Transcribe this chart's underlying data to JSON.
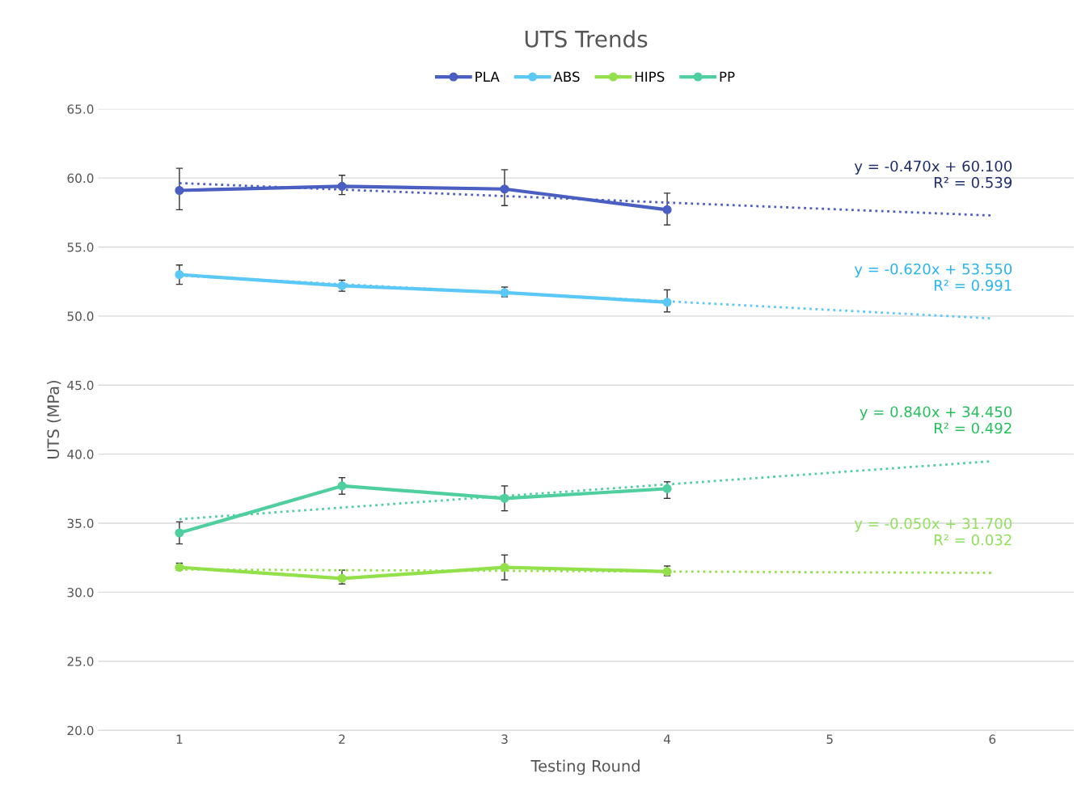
{
  "chart_data": {
    "type": "line",
    "title": "UTS Trends",
    "xlabel": "Testing Round",
    "ylabel": "UTS (MPa)",
    "xlim": [
      0.5,
      6.5
    ],
    "xticks": [
      1,
      2,
      3,
      4,
      5,
      6
    ],
    "ylim": [
      20,
      65
    ],
    "yticks": [
      {
        "value": 20,
        "label": "20.0"
      },
      {
        "value": 25,
        "label": "25.0"
      },
      {
        "value": 30,
        "label": "30.0"
      },
      {
        "value": 35,
        "label": "35.0"
      },
      {
        "value": 40,
        "label": "40.0"
      },
      {
        "value": 45,
        "label": "45.0"
      },
      {
        "value": 50,
        "label": "50.0"
      },
      {
        "value": 55,
        "label": "55.0"
      },
      {
        "value": 60,
        "label": "60.0"
      },
      {
        "value": 65,
        "label": "65.0"
      }
    ],
    "grid": "y",
    "legend": "top",
    "marker": "circle",
    "series": [
      {
        "name": "PLA",
        "color": "#4a5fc1",
        "x": [
          1,
          2,
          3,
          4
        ],
        "values": [
          59.1,
          59.4,
          59.2,
          57.7
        ],
        "errors": [
          [
            57.7,
            60.7
          ],
          [
            58.8,
            60.2
          ],
          [
            58.0,
            60.6
          ],
          [
            56.6,
            58.9
          ]
        ]
      },
      {
        "name": "ABS",
        "color": "#5bc8f5",
        "x": [
          1,
          2,
          3,
          4
        ],
        "values": [
          53.0,
          52.2,
          51.7,
          51.0
        ],
        "errors": [
          [
            52.3,
            53.7
          ],
          [
            51.8,
            52.6
          ],
          [
            51.4,
            52.1
          ],
          [
            50.3,
            51.9
          ]
        ]
      },
      {
        "name": "HIPS",
        "color": "#92e04a",
        "x": [
          1,
          2,
          3,
          4
        ],
        "values": [
          31.8,
          31.0,
          31.8,
          31.5
        ],
        "errors": [
          [
            31.6,
            32.1
          ],
          [
            30.6,
            31.6
          ],
          [
            30.9,
            32.7
          ],
          [
            31.2,
            31.9
          ]
        ]
      },
      {
        "name": "PP",
        "color": "#4fcfa0",
        "x": [
          1,
          2,
          3,
          4
        ],
        "values": [
          34.3,
          37.7,
          36.8,
          37.5
        ],
        "errors": [
          [
            33.5,
            35.1
          ],
          [
            37.1,
            38.3
          ],
          [
            35.9,
            37.7
          ],
          [
            36.8,
            38.0
          ]
        ]
      },
      {
        "color": "#4a5fc1",
        "x": [
          1,
          6
        ],
        "values": [
          59.63,
          57.28
        ],
        "line_style": "dotted",
        "marker": "none"
      },
      {
        "color": "#5bc8f5",
        "x": [
          1,
          6
        ],
        "values": [
          52.93,
          49.83
        ],
        "line_style": "dotted",
        "marker": "none"
      },
      {
        "color": "#92e04a",
        "x": [
          1,
          6
        ],
        "values": [
          31.65,
          31.4
        ],
        "line_style": "dotted",
        "marker": "none"
      },
      {
        "color": "#4fcfa0",
        "x": [
          1,
          6
        ],
        "values": [
          35.29,
          39.49
        ],
        "line_style": "dotted",
        "marker": "none"
      }
    ],
    "annotations": [
      "y = -0.470x + 60.100\nR² = 0.539",
      "y = -0.620x + 53.550\nR² = 0.991",
      "y = -0.050x + 31.700\nR² = 0.032",
      "y = 0.840x + 34.450\nR² = 0.492"
    ]
  }
}
